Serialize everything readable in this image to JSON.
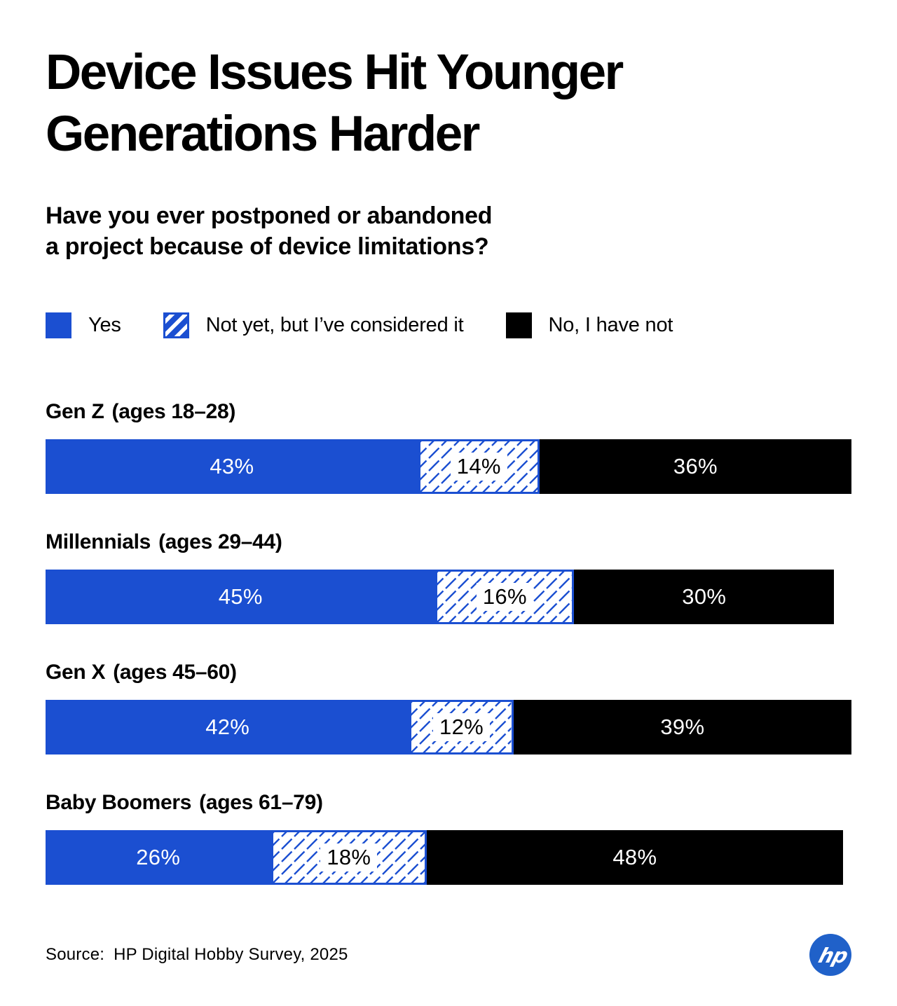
{
  "title": {
    "line1": "Device Issues Hit Younger",
    "line2": "Generations Harder"
  },
  "subtitle": {
    "line1": "Have you ever postponed or abandoned",
    "line2": "a project because of device limitations?"
  },
  "legend": [
    {
      "label": "Yes",
      "style": "solid-blue"
    },
    {
      "label": "Not yet, but I’ve considered it",
      "style": "blue-hatched"
    },
    {
      "label": "No, I have not",
      "style": "solid-black"
    }
  ],
  "chart_data": {
    "type": "bar",
    "orientation": "horizontal-stacked",
    "unit": "%",
    "title": "Device Issues Hit Younger Generations Harder",
    "question": "Have you ever postponed or abandoned a project because of device limitations?",
    "series_names": [
      "Yes",
      "Not yet, but I’ve considered it",
      "No, I have not"
    ],
    "categories": [
      "Gen Z",
      "Millennials",
      "Gen X",
      "Baby Boomers"
    ],
    "groups": [
      {
        "label": "Gen Z",
        "ages": "(ages 18–28)",
        "values": [
          43,
          14,
          36
        ]
      },
      {
        "label": "Millennials",
        "ages": "(ages 29–44)",
        "values": [
          45,
          16,
          30
        ]
      },
      {
        "label": "Gen X",
        "ages": "(ages 45–60)",
        "values": [
          42,
          12,
          39
        ]
      },
      {
        "label": "Baby Boomers",
        "ages": "(ages 61–79)",
        "values": [
          26,
          18,
          48
        ]
      }
    ],
    "xlim": [
      0,
      93
    ],
    "grid": false,
    "legend_position": "top"
  },
  "source": {
    "prefix": "Source:",
    "text": "HP Digital Hobby Survey, 2025"
  },
  "logo": {
    "text": "hp"
  },
  "colors": {
    "blue": "#1B4FD1",
    "black": "#000000",
    "hatch_line": "#1B4FD1",
    "logo_blue": "#2061C9",
    "text": "#000000",
    "background": "#FFFFFF"
  }
}
